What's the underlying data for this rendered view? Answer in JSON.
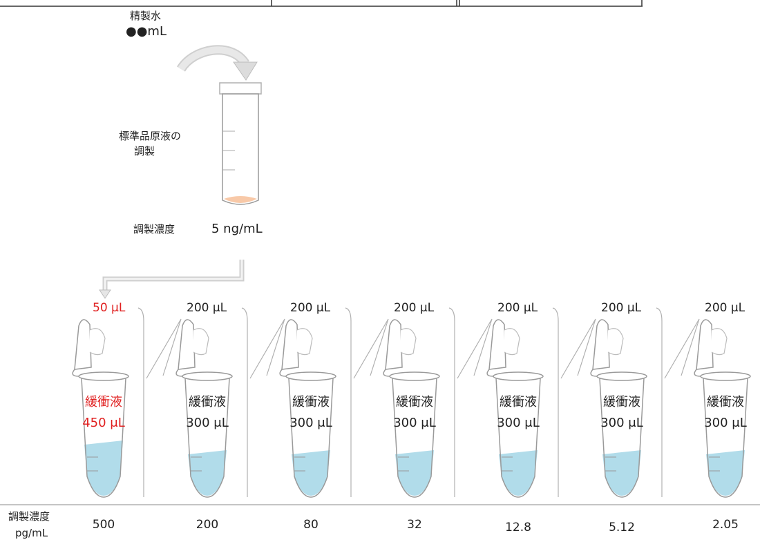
{
  "source": {
    "water_label": "精製水",
    "water_amount": "●●mL",
    "stock_label_line1": "標準品原液の",
    "stock_label_line2": "調製",
    "prep_conc_label": "調製濃度",
    "prep_conc_value": "5 ng/mL"
  },
  "tubes": [
    {
      "transfer": "50 μL",
      "buffer": "緩衝液",
      "buffer_volume": "450 μL",
      "conc": "500",
      "highlight": true
    },
    {
      "transfer": "200 μL",
      "buffer": "緩衝液",
      "buffer_volume": "300 μL",
      "conc": "200",
      "highlight": false
    },
    {
      "transfer": "200 μL",
      "buffer": "緩衝液",
      "buffer_volume": "300 μL",
      "conc": "80",
      "highlight": false
    },
    {
      "transfer": "200 μL",
      "buffer": "緩衝液",
      "buffer_volume": "300 μL",
      "conc": "32",
      "highlight": false
    },
    {
      "transfer": "200 μL",
      "buffer": "緩衝液",
      "buffer_volume": "300 μL",
      "conc": "12.8",
      "highlight": false
    },
    {
      "transfer": "200 μL",
      "buffer": "緩衝液",
      "buffer_volume": "300 μL",
      "conc": "5.12",
      "highlight": false
    },
    {
      "transfer": "200 μL",
      "buffer": "緩衝液",
      "buffer_volume": "300 μL",
      "conc": "2.05",
      "highlight": false
    }
  ],
  "footer": {
    "conc_label": "調製濃度",
    "conc_unit": "pg/mL"
  },
  "colors": {
    "liquid": "#a9d8e8",
    "stock_liquid": "#f8c9a8",
    "highlight": "#e02020",
    "outline": "#9a9a9a"
  }
}
